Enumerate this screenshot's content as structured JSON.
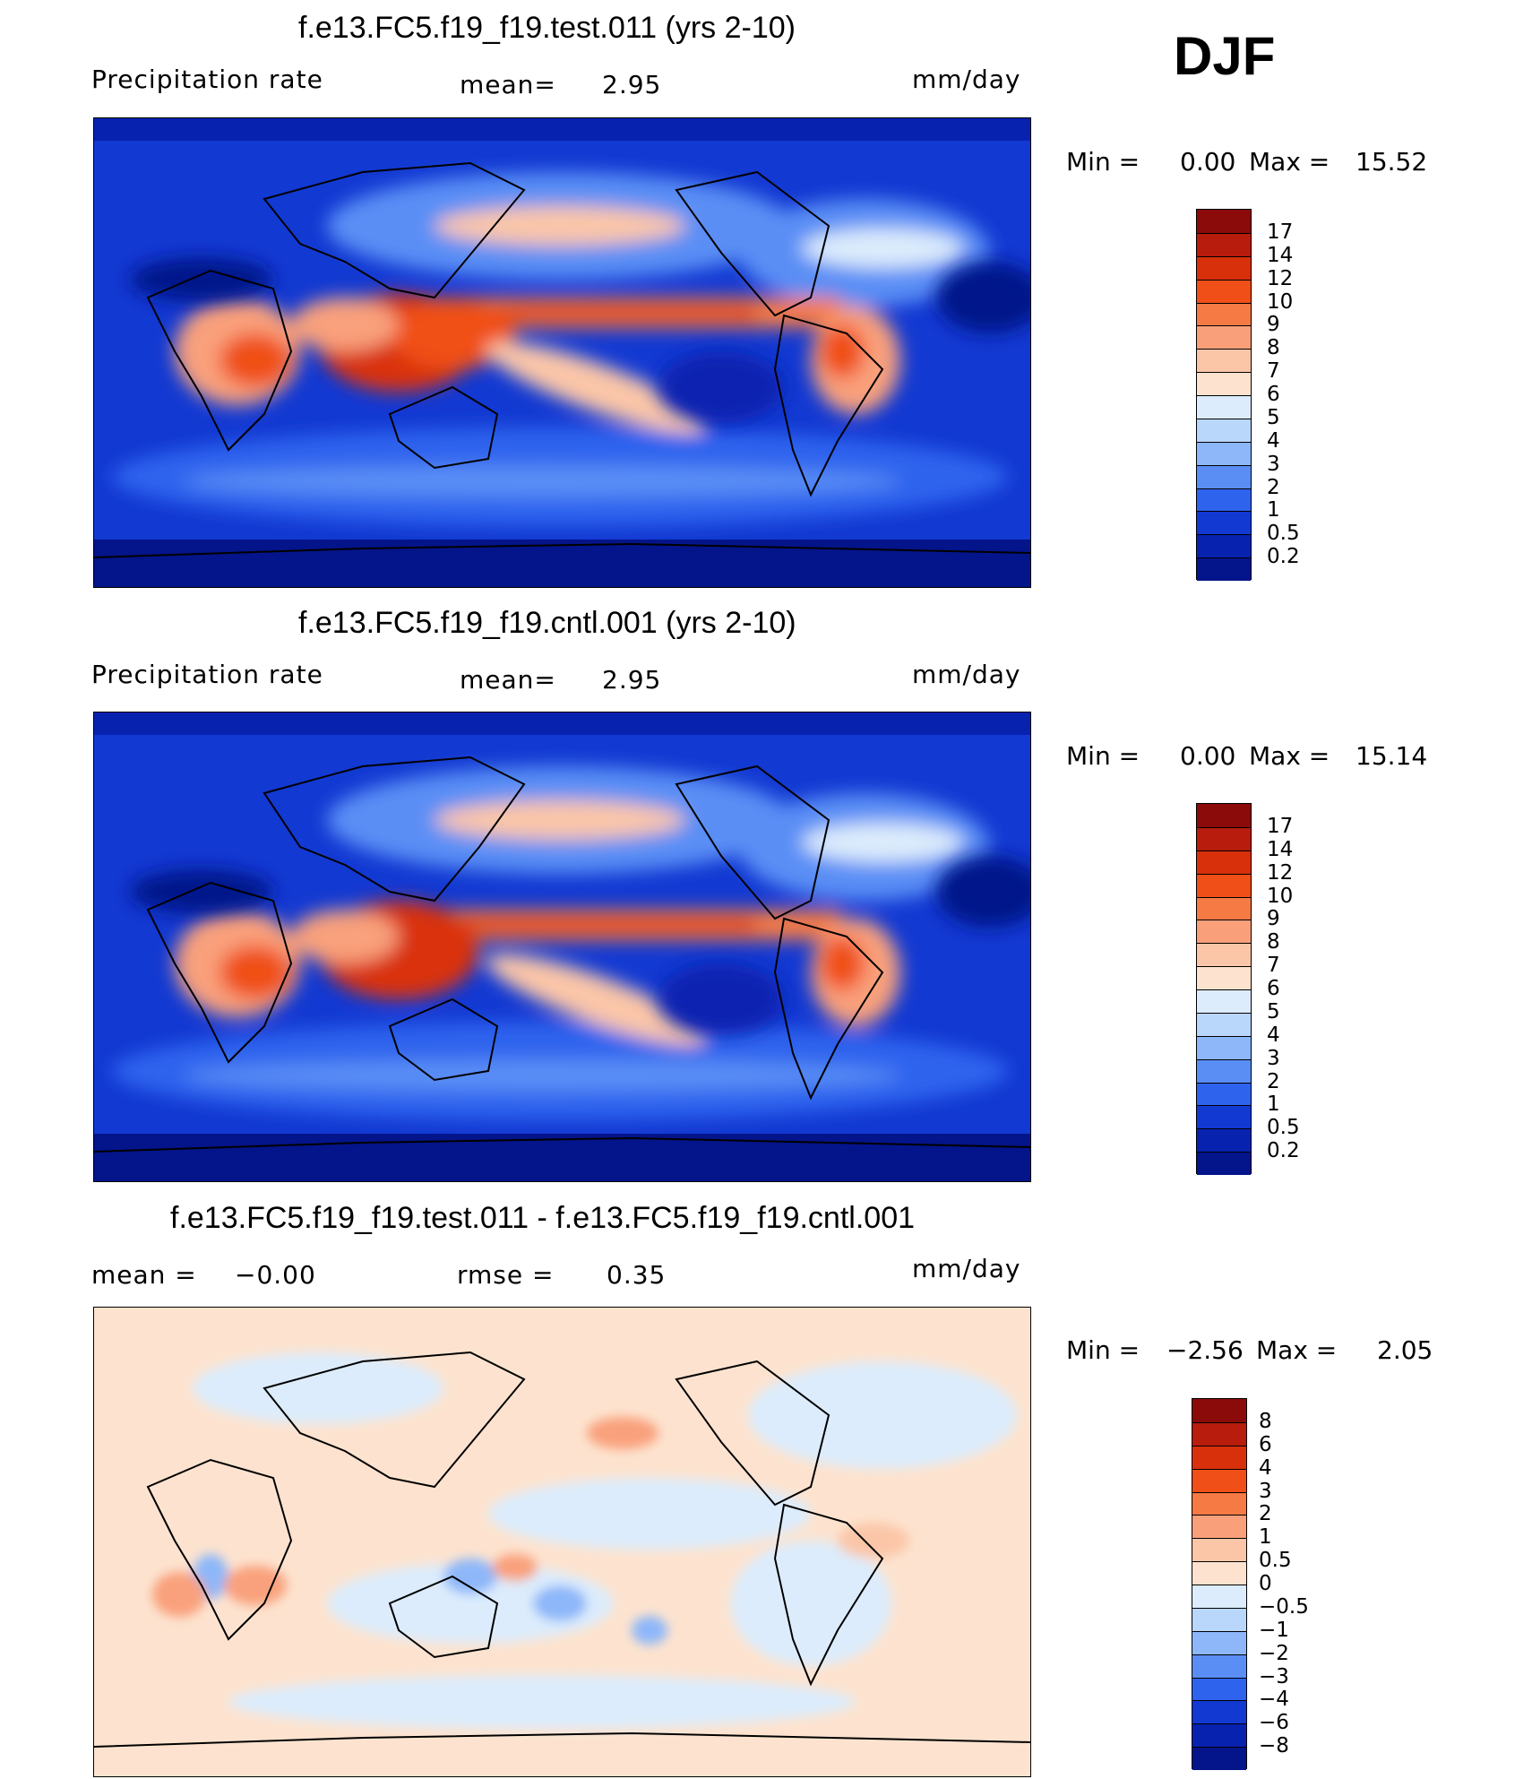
{
  "season": "DJF",
  "panels": [
    {
      "title": "f.e13.FC5.f19_f19.test.011 (yrs 2-10)",
      "left_label": "Precipitation  rate",
      "mid_label": "mean=",
      "mid_value": "2.95",
      "units": "mm/day",
      "min_label": "Min  =",
      "min_value": "0.00",
      "max_label": "Max  =",
      "max_value": "15.52",
      "colorbar_ticks": [
        "17",
        "14",
        "12",
        "10",
        "9",
        "8",
        "7",
        "6",
        "5",
        "4",
        "3",
        "2",
        "1",
        "0.5",
        "0.2"
      ],
      "colorbar_colors": [
        "#8b0a0a",
        "#b71c0c",
        "#d9300c",
        "#f04f18",
        "#f67a44",
        "#f9a07b",
        "#fbc6a8",
        "#fde3cf",
        "#dcecfc",
        "#b9d6fb",
        "#8db7f9",
        "#5a8ef5",
        "#2e63ee",
        "#1239d2",
        "#0822b0",
        "#04148a"
      ]
    },
    {
      "title": "f.e13.FC5.f19_f19.cntl.001 (yrs 2-10)",
      "left_label": "Precipitation  rate",
      "mid_label": "mean=",
      "mid_value": "2.95",
      "units": "mm/day",
      "min_label": "Min  =",
      "min_value": "0.00",
      "max_label": "Max  =",
      "max_value": "15.14",
      "colorbar_ticks": [
        "17",
        "14",
        "12",
        "10",
        "9",
        "8",
        "7",
        "6",
        "5",
        "4",
        "3",
        "2",
        "1",
        "0.5",
        "0.2"
      ],
      "colorbar_colors": [
        "#8b0a0a",
        "#b71c0c",
        "#d9300c",
        "#f04f18",
        "#f67a44",
        "#f9a07b",
        "#fbc6a8",
        "#fde3cf",
        "#dcecfc",
        "#b9d6fb",
        "#8db7f9",
        "#5a8ef5",
        "#2e63ee",
        "#1239d2",
        "#0822b0",
        "#04148a"
      ]
    },
    {
      "title": "f.e13.FC5.f19_f19.test.011 - f.e13.FC5.f19_f19.cntl.001",
      "left_label": "mean  =",
      "left_value": "−0.00",
      "mid_label": "rmse  =",
      "mid_value": "0.35",
      "units": "mm/day",
      "min_label": "Min  =",
      "min_value": "−2.56",
      "max_label": "Max  =",
      "max_value": "2.05",
      "colorbar_ticks": [
        "8",
        "6",
        "4",
        "3",
        "2",
        "1",
        "0.5",
        "0",
        "−0.5",
        "−1",
        "−2",
        "−3",
        "−4",
        "−6",
        "−8"
      ],
      "colorbar_colors": [
        "#8b0a0a",
        "#b71c0c",
        "#d9300c",
        "#f04f18",
        "#f67a44",
        "#f9a07b",
        "#fbc6a8",
        "#fde3cf",
        "#dcecfc",
        "#b9d6fb",
        "#8db7f9",
        "#5a8ef5",
        "#2e63ee",
        "#1239d2",
        "#0822b0",
        "#04148a"
      ]
    }
  ]
}
